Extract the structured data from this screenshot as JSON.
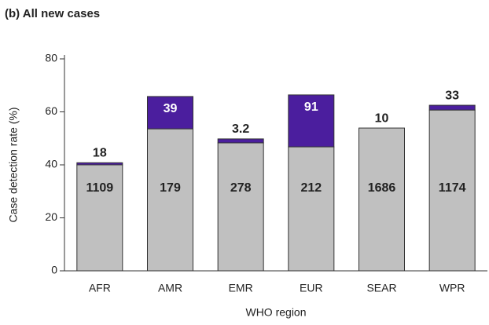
{
  "chart_data": {
    "type": "stacked_bar",
    "title": "(b) All new cases",
    "x_label": "WHO region",
    "y_label": "Case detection rate (%)",
    "categories": [
      "AFR",
      "AMR",
      "EMR",
      "EUR",
      "SEAR",
      "WPR"
    ],
    "series": [
      {
        "color": "#c0c0c0",
        "values": [
          40,
          53.6,
          48.3,
          46.8,
          53.9,
          60.7
        ],
        "labels": [
          1109,
          179,
          278,
          212,
          1686,
          1174
        ]
      },
      {
        "color": "#4b1e9e",
        "values": [
          0.8,
          12.2,
          1.5,
          19.6,
          0,
          1.8
        ],
        "labels": [
          18,
          39,
          3.2,
          91,
          10,
          33
        ]
      }
    ],
    "ylim": [
      0,
      80
    ],
    "yticks": [
      0,
      20,
      40,
      60,
      80
    ]
  }
}
